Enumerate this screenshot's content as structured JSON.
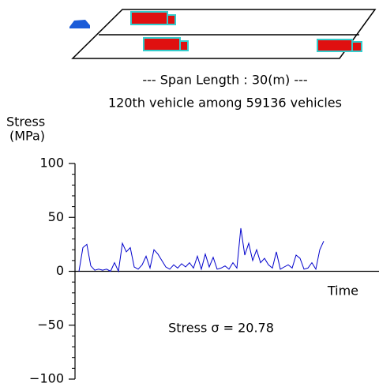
{
  "header": {
    "span_text": "--- Span Length : 30(m) ---",
    "vehicle_text": "120th vehicle among 59136 vehicles"
  },
  "chart_data": {
    "type": "line",
    "y_label_lines": [
      "Stress",
      "(MPa)"
    ],
    "x_label": "Time",
    "annotation": "Stress  σ = 20.78",
    "values": [
      0,
      22,
      25,
      5,
      1,
      2,
      1,
      2,
      0,
      8,
      0,
      26,
      18,
      22,
      4,
      2,
      6,
      14,
      3,
      20,
      16,
      10,
      4,
      2,
      6,
      3,
      7,
      4,
      8,
      3,
      14,
      2,
      16,
      4,
      13,
      2,
      3,
      5,
      2,
      8,
      3,
      40,
      15,
      26,
      10,
      20,
      8,
      12,
      6,
      3,
      18,
      2,
      4,
      6,
      3,
      15,
      12,
      2,
      3,
      8,
      2,
      20,
      28
    ],
    "color": "#0000cc",
    "ylim": [
      -100,
      100
    ],
    "yticks": [
      {
        "value": -100,
        "label": "−100"
      },
      {
        "value": -50,
        "label": "−50"
      },
      0,
      50,
      100
    ],
    "minor_yticks": [
      -90,
      -80,
      -70,
      -60,
      -40,
      -30,
      -20,
      -10,
      10,
      20,
      30,
      40,
      60,
      70,
      80,
      90
    ]
  }
}
